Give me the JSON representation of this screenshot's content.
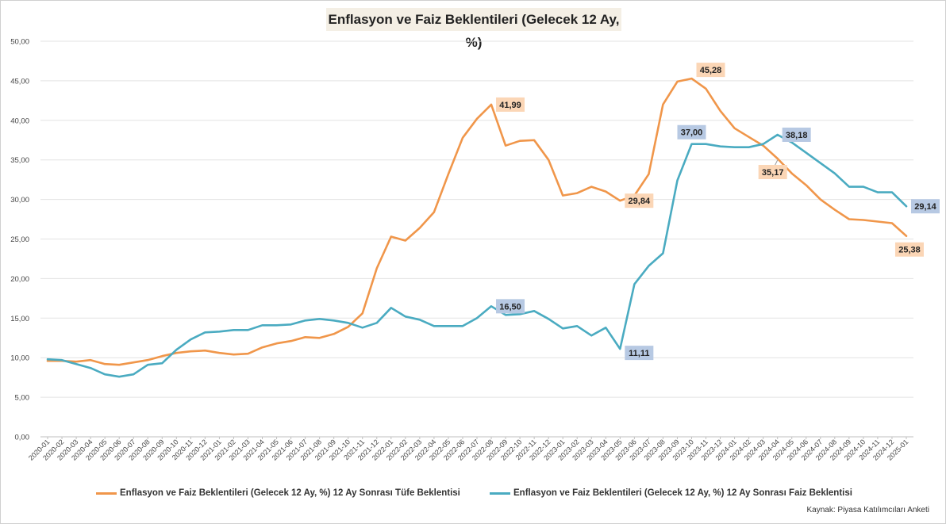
{
  "title": "Enflasyon ve Faiz Beklentileri (Gelecek 12 Ay, %)",
  "source": "Kaynak: Piyasa Katılımcıları Anketi",
  "chart_data": {
    "type": "line",
    "title": "Enflasyon ve Faiz Beklentileri (Gelecek 12 Ay, %)",
    "ylim": [
      0,
      50
    ],
    "yticks": [
      "0,00",
      "5,00",
      "10,00",
      "15,00",
      "20,00",
      "25,00",
      "30,00",
      "35,00",
      "40,00",
      "45,00",
      "50,00"
    ],
    "grid": true,
    "legend_position": "bottom",
    "categories": [
      "2020-01",
      "2020-02",
      "2020-03",
      "2020-04",
      "2020-05",
      "2020-06",
      "2020-07",
      "2020-08",
      "2020-09",
      "2020-10",
      "2020-11",
      "2020-12",
      "2021-01",
      "2021-02",
      "2021-03",
      "2021-04",
      "2021-05",
      "2021-06",
      "2021-07",
      "2021-08",
      "2021-09",
      "2021-10",
      "2021-11",
      "2021-12",
      "2022-01",
      "2022-02",
      "2022-03",
      "2022-04",
      "2022-05",
      "2022-06",
      "2022-07",
      "2022-08",
      "2022-09",
      "2022-10",
      "2022-11",
      "2022-12",
      "2023-01",
      "2023-02",
      "2023-03",
      "2023-04",
      "2023-05",
      "2023-06",
      "2023-07",
      "2023-08",
      "2023-09",
      "2023-10",
      "2023-11",
      "2023-12",
      "2024-01",
      "2024-02",
      "2024-03",
      "2024-04",
      "2024-05",
      "2024-06",
      "2024-07",
      "2024-08",
      "2024-09",
      "2024-10",
      "2024-11",
      "2024-12",
      "2025-01"
    ],
    "series": [
      {
        "name": "Enflasyon ve Faiz Beklentileri (Gelecek 12 Ay, %) 12 Ay Sonrası Tüfe Beklentisi",
        "color": "#f0964a",
        "values": [
          9.6,
          9.6,
          9.5,
          9.7,
          9.2,
          9.1,
          9.4,
          9.7,
          10.2,
          10.6,
          10.8,
          10.9,
          10.6,
          10.4,
          10.5,
          11.3,
          11.8,
          12.1,
          12.6,
          12.5,
          13.0,
          13.9,
          15.6,
          21.3,
          25.3,
          24.8,
          26.4,
          28.4,
          33.2,
          37.8,
          40.2,
          41.99,
          36.8,
          37.4,
          37.5,
          35.0,
          30.5,
          30.8,
          31.6,
          31.0,
          29.84,
          30.5,
          33.2,
          42.0,
          44.9,
          45.28,
          44.0,
          41.2,
          39.0,
          37.9,
          36.8,
          35.17,
          33.3,
          31.8,
          30.0,
          28.7,
          27.5,
          27.4,
          27.2,
          27.0,
          25.38
        ],
        "labels": [
          {
            "index": 31,
            "text": "41,99",
            "pos": "right"
          },
          {
            "index": 40,
            "text": "29,84",
            "pos": "right"
          },
          {
            "index": 45,
            "text": "45,28",
            "pos": "right-up"
          },
          {
            "index": 51,
            "text": "35,17",
            "pos": "below"
          },
          {
            "index": 60,
            "text": "25,38",
            "pos": "below"
          }
        ],
        "label_bg": "#fbd6b6"
      },
      {
        "name": "Enflasyon ve Faiz Beklentileri (Gelecek 12 Ay, %) 12 Ay Sonrası Faiz Beklentisi",
        "color": "#4aabc1",
        "values": [
          9.8,
          9.7,
          9.2,
          8.7,
          7.9,
          7.6,
          7.9,
          9.1,
          9.3,
          11.0,
          12.3,
          13.2,
          13.3,
          13.5,
          13.5,
          14.1,
          14.1,
          14.2,
          14.7,
          14.9,
          14.7,
          14.4,
          13.8,
          14.4,
          16.3,
          15.2,
          14.8,
          14.0,
          14.0,
          14.0,
          15.0,
          16.5,
          15.4,
          15.5,
          15.9,
          14.9,
          13.7,
          14.0,
          12.8,
          13.8,
          11.11,
          19.3,
          21.6,
          23.2,
          32.4,
          37.0,
          37.0,
          36.7,
          36.6,
          36.6,
          37.0,
          38.18,
          37.2,
          35.9,
          34.6,
          33.3,
          31.6,
          31.6,
          30.9,
          30.9,
          29.14
        ],
        "labels": [
          {
            "index": 31,
            "text": "16,50",
            "pos": "right"
          },
          {
            "index": 40,
            "text": "11,11",
            "pos": "right-down"
          },
          {
            "index": 45,
            "text": "37,00",
            "pos": "above"
          },
          {
            "index": 51,
            "text": "38,18",
            "pos": "right"
          },
          {
            "index": 60,
            "text": "29,14",
            "pos": "right"
          }
        ],
        "label_bg": "#b7c9e3"
      }
    ]
  }
}
